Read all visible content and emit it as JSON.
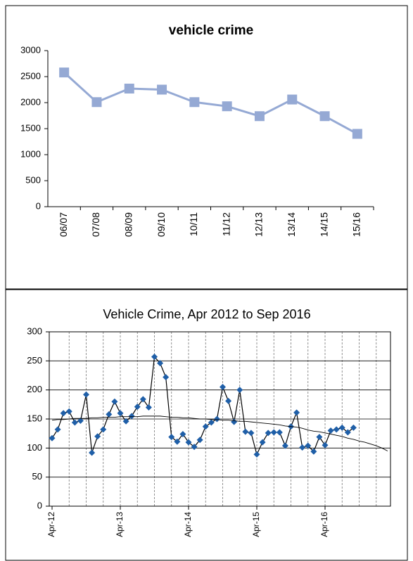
{
  "chart_data": [
    {
      "type": "line",
      "title": "vehicle crime",
      "categories": [
        "06/07",
        "07/08",
        "08/09",
        "09/10",
        "10/11",
        "11/12",
        "12/13",
        "13/14",
        "14/15",
        "15/16"
      ],
      "series": [
        {
          "color": "#95a9d4",
          "marker": "square",
          "values": [
            2580,
            2010,
            2270,
            2250,
            2010,
            1930,
            1740,
            2060,
            1740,
            1400
          ]
        }
      ],
      "ylim": [
        0,
        3000
      ],
      "yticks": [
        0,
        500,
        1000,
        1500,
        2000,
        2500,
        3000
      ],
      "grid": false
    },
    {
      "type": "line",
      "title": "Vehicle Crime, Apr 2012  to Sep 2016",
      "categories": [
        "Apr-12",
        null,
        null,
        null,
        null,
        null,
        null,
        null,
        null,
        null,
        null,
        null,
        "Apr-13",
        null,
        null,
        null,
        null,
        null,
        null,
        null,
        null,
        null,
        null,
        null,
        "Apr-14",
        null,
        null,
        null,
        null,
        null,
        null,
        null,
        null,
        null,
        null,
        null,
        "Apr-15",
        null,
        null,
        null,
        null,
        null,
        null,
        null,
        null,
        null,
        null,
        null,
        "Apr-16",
        null,
        null,
        null,
        null,
        null,
        null,
        null,
        null,
        null,
        null,
        null
      ],
      "series": [
        {
          "color": "#1f5fa8",
          "marker": "diamond",
          "values": [
            117,
            132,
            160,
            163,
            144,
            147,
            192,
            92,
            120,
            132,
            158,
            180,
            160,
            146,
            155,
            171,
            184,
            170,
            257,
            246,
            222,
            119,
            111,
            124,
            110,
            102,
            114,
            137,
            144,
            150,
            205,
            181,
            145,
            200,
            128,
            126,
            89,
            110,
            126,
            127,
            127,
            104,
            137,
            161,
            101,
            104,
            94,
            119,
            105,
            130,
            132,
            135,
            127,
            135,
            null,
            null,
            null,
            null,
            null,
            null
          ]
        },
        {
          "color": "#000000",
          "marker": "none",
          "values": [
            148,
            149,
            149,
            150,
            151,
            151,
            151,
            152,
            152,
            153,
            153,
            153,
            154,
            154,
            154,
            154,
            155,
            155,
            155,
            155,
            154,
            153,
            153,
            152,
            152,
            151,
            150,
            150,
            149,
            149,
            148,
            148,
            147,
            146,
            146,
            145,
            144,
            143,
            142,
            141,
            140,
            138,
            137,
            136,
            134,
            131,
            129,
            128,
            126,
            124,
            122,
            120,
            117,
            115,
            112,
            110,
            107,
            104,
            100,
            95
          ]
        }
      ],
      "ylim": [
        0,
        300
      ],
      "yticks": [
        0,
        50,
        100,
        150,
        200,
        250,
        300
      ],
      "grid": true
    }
  ]
}
